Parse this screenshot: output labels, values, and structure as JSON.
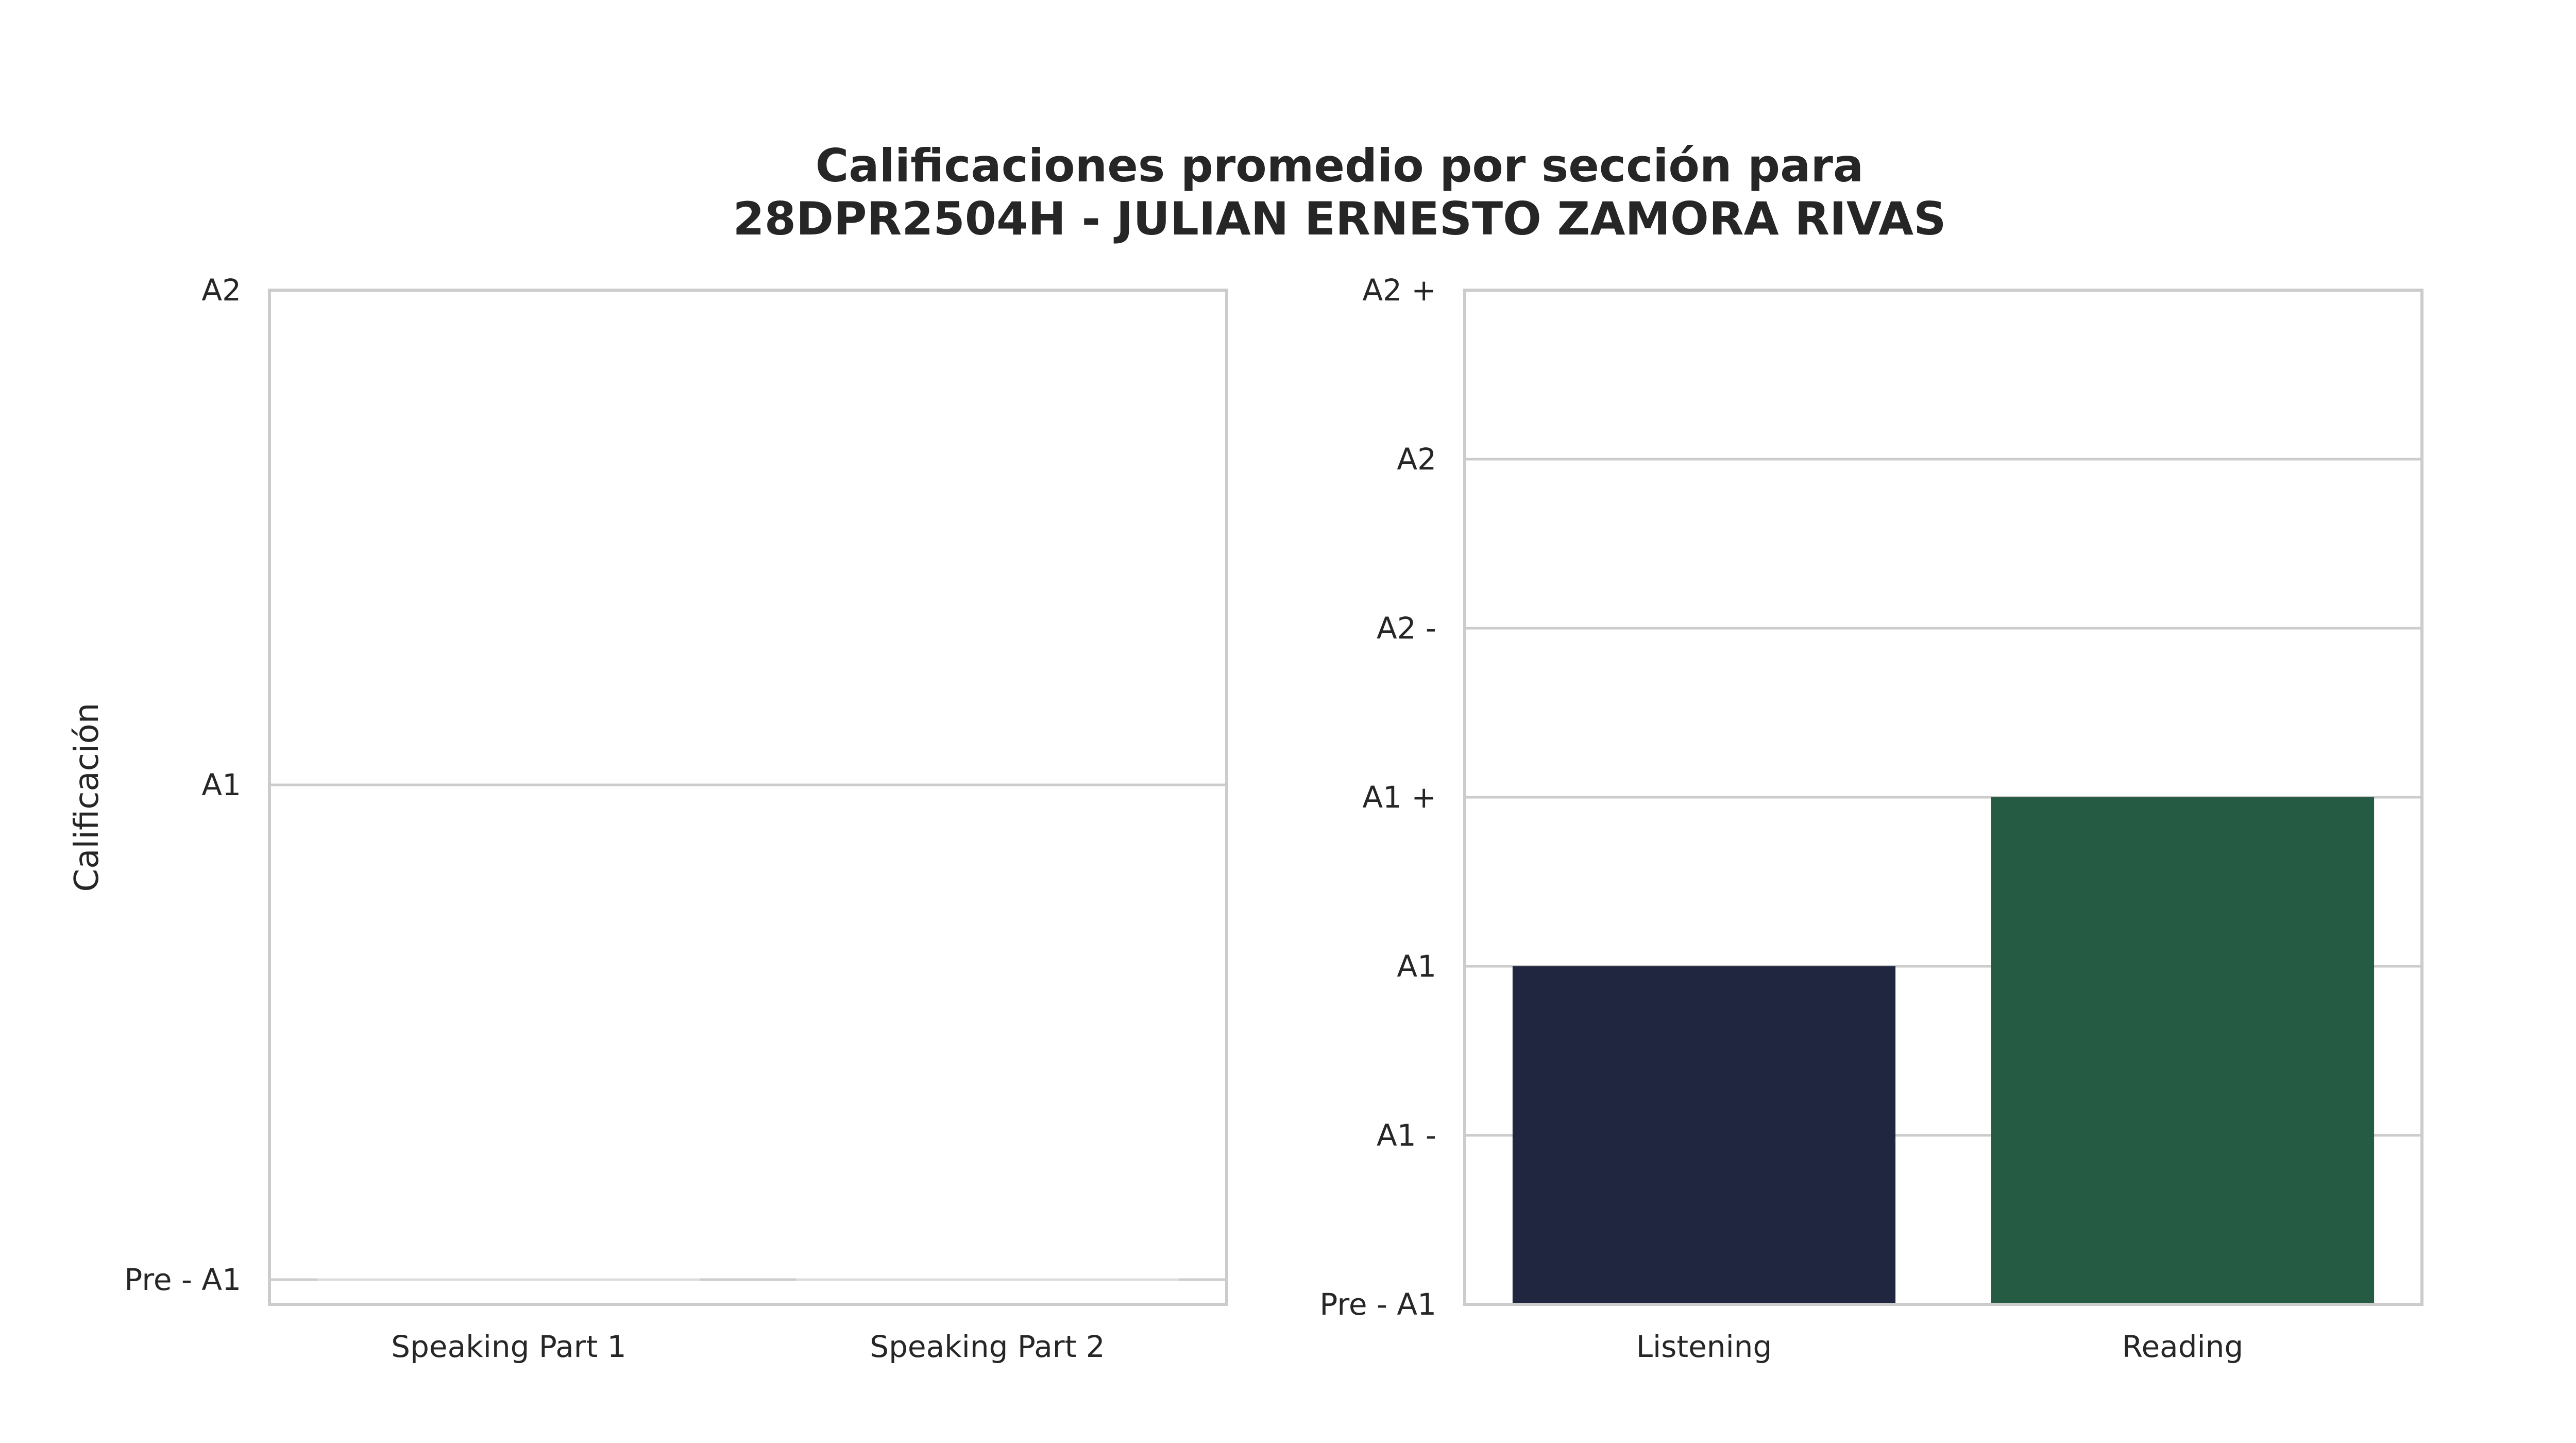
{
  "chart_title": {
    "line1": "Calificaciones promedio por sección para",
    "line2": "28DPR2504H - JULIAN ERNESTO ZAMORA RIVAS"
  },
  "chart_data": [
    {
      "type": "bar",
      "ylabel": "Calificación",
      "xlabel": "",
      "categories": [
        "Speaking Part 1",
        "Speaking Part 2"
      ],
      "values": [
        0,
        0
      ],
      "yticks": [
        {
          "value": 0,
          "label": "Pre - A1"
        },
        {
          "value": 1,
          "label": "A1"
        },
        {
          "value": 2,
          "label": "A2"
        }
      ],
      "ylim": [
        -0.05,
        2
      ],
      "colors": [
        "#202540",
        "#255b43"
      ],
      "grid": true
    },
    {
      "type": "bar",
      "ylabel": "",
      "xlabel": "",
      "categories": [
        "Listening",
        "Reading"
      ],
      "values": [
        2,
        3
      ],
      "yticks": [
        {
          "value": 0,
          "label": "Pre - A1"
        },
        {
          "value": 1,
          "label": "A1 -"
        },
        {
          "value": 2,
          "label": "A1"
        },
        {
          "value": 3,
          "label": "A1 +"
        },
        {
          "value": 4,
          "label": "A2 -"
        },
        {
          "value": 5,
          "label": "A2"
        },
        {
          "value": 6,
          "label": "A2 +"
        }
      ],
      "ylim": [
        0,
        6
      ],
      "colors": [
        "#202540",
        "#255b43"
      ],
      "grid": true
    }
  ]
}
